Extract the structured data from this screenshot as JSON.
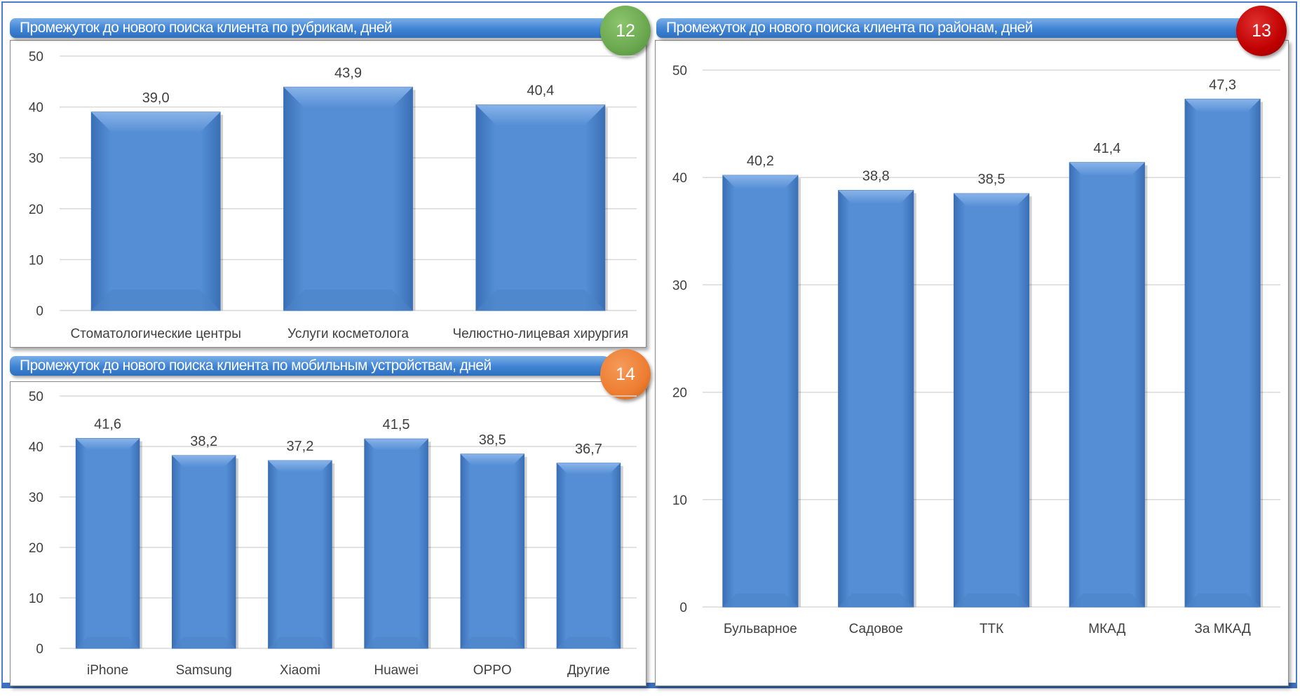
{
  "colors": {
    "bar": "#558ed5",
    "bar_light": "#8fb8ec",
    "bar_dark": "#3a6fb5",
    "badge_12": "#6aa84f",
    "badge_13": "#c00000",
    "badge_14": "#ed7d31",
    "title_bar": "#3f83d4"
  },
  "chart_data": [
    {
      "id": "12",
      "type": "bar",
      "title": "Промежуток до нового поиска клиента по рубрикам, дней",
      "badge": "12",
      "categories": [
        "Стоматологические  центры",
        "Услуги косметолога",
        "Челюстно-лицевая хирургия"
      ],
      "values": [
        39.0,
        43.9,
        40.4
      ],
      "labels": [
        "39,0",
        "43,9",
        "40,4"
      ],
      "ylim": [
        0,
        50
      ],
      "yticks": [
        "0",
        "10",
        "20",
        "30",
        "40",
        "50"
      ],
      "grid": true,
      "xlabel": "",
      "ylabel": ""
    },
    {
      "id": "14",
      "type": "bar",
      "title": "Промежуток до нового поиска клиента по мобильным устройствам, дней",
      "badge": "14",
      "categories": [
        "iPhone",
        "Samsung",
        "Xiaomi",
        "Huawei",
        "OPPO",
        "Другие"
      ],
      "values": [
        41.6,
        38.2,
        37.2,
        41.5,
        38.5,
        36.7
      ],
      "labels": [
        "41,6",
        "38,2",
        "37,2",
        "41,5",
        "38,5",
        "36,7"
      ],
      "ylim": [
        0,
        50
      ],
      "yticks": [
        "0",
        "10",
        "20",
        "30",
        "40",
        "50"
      ],
      "grid": true,
      "xlabel": "",
      "ylabel": ""
    },
    {
      "id": "13",
      "type": "bar",
      "title": "Промежуток до нового поиска клиента по районам, дней",
      "badge": "13",
      "categories": [
        "Бульварное",
        "Садовое",
        "ТТК",
        "МКАД",
        "За МКАД"
      ],
      "values": [
        40.2,
        38.8,
        38.5,
        41.4,
        47.3
      ],
      "labels": [
        "40,2",
        "38,8",
        "38,5",
        "41,4",
        "47,3"
      ],
      "ylim": [
        0,
        50
      ],
      "yticks": [
        "0",
        "10",
        "20",
        "30",
        "40",
        "50"
      ],
      "grid": true,
      "xlabel": "",
      "ylabel": ""
    }
  ]
}
